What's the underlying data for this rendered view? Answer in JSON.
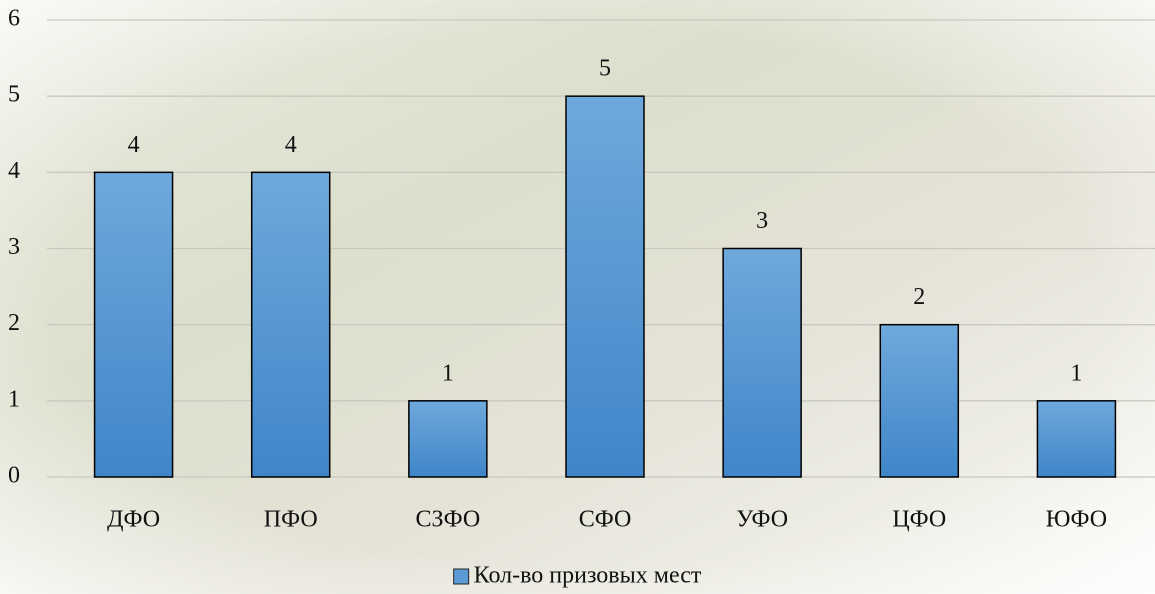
{
  "chart_data": {
    "type": "bar",
    "categories": [
      "ДФО",
      "ПФО",
      "СЗФО",
      "СФО",
      "УФО",
      "ЦФО",
      "ЮФО"
    ],
    "series": [
      {
        "name": "Кол-во призовых мест",
        "color": "#5b9bd5",
        "values": [
          4,
          4,
          1,
          5,
          3,
          2,
          1
        ]
      }
    ],
    "ylim": [
      0,
      6
    ],
    "yticks": [
      0,
      1,
      2,
      3,
      4,
      5,
      6
    ],
    "grid": true,
    "legend": "bottom",
    "data_labels": true
  }
}
